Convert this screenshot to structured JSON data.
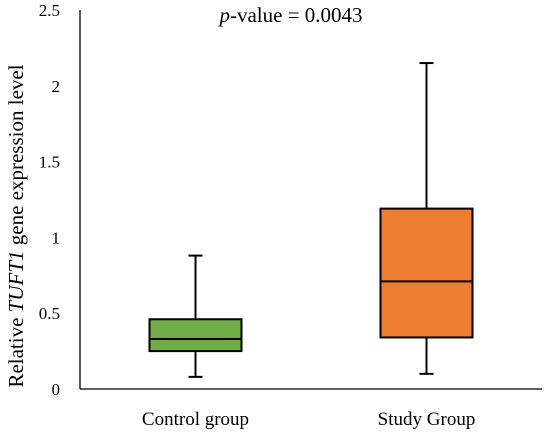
{
  "chart_data": {
    "type": "boxplot",
    "annotation": {
      "italic_part": "p",
      "rest": "-value = 0.0043"
    },
    "ylabel": {
      "before": "Relative ",
      "italic": "TUFT1",
      "after": " gene expression level"
    },
    "xlabel": "",
    "ylim": [
      0,
      2.5
    ],
    "yticks": [
      {
        "value": 0,
        "label": "0"
      },
      {
        "value": 0.5,
        "label": "0.5"
      },
      {
        "value": 1,
        "label": "1"
      },
      {
        "value": 1.5,
        "label": "1.5"
      },
      {
        "value": 2,
        "label": "2"
      },
      {
        "value": 2.5,
        "label": "2.5"
      }
    ],
    "grid": false,
    "categories": [
      "Control group",
      "Study Group"
    ],
    "boxes": [
      {
        "category": "Control group",
        "whisker_low": 0.08,
        "q1": 0.25,
        "median": 0.33,
        "q3": 0.46,
        "whisker_high": 0.88,
        "color": "#70ad47"
      },
      {
        "category": "Study Group",
        "whisker_low": 0.1,
        "q1": 0.34,
        "median": 0.71,
        "q3": 1.19,
        "whisker_high": 2.15,
        "color": "#ed7d31"
      }
    ]
  }
}
